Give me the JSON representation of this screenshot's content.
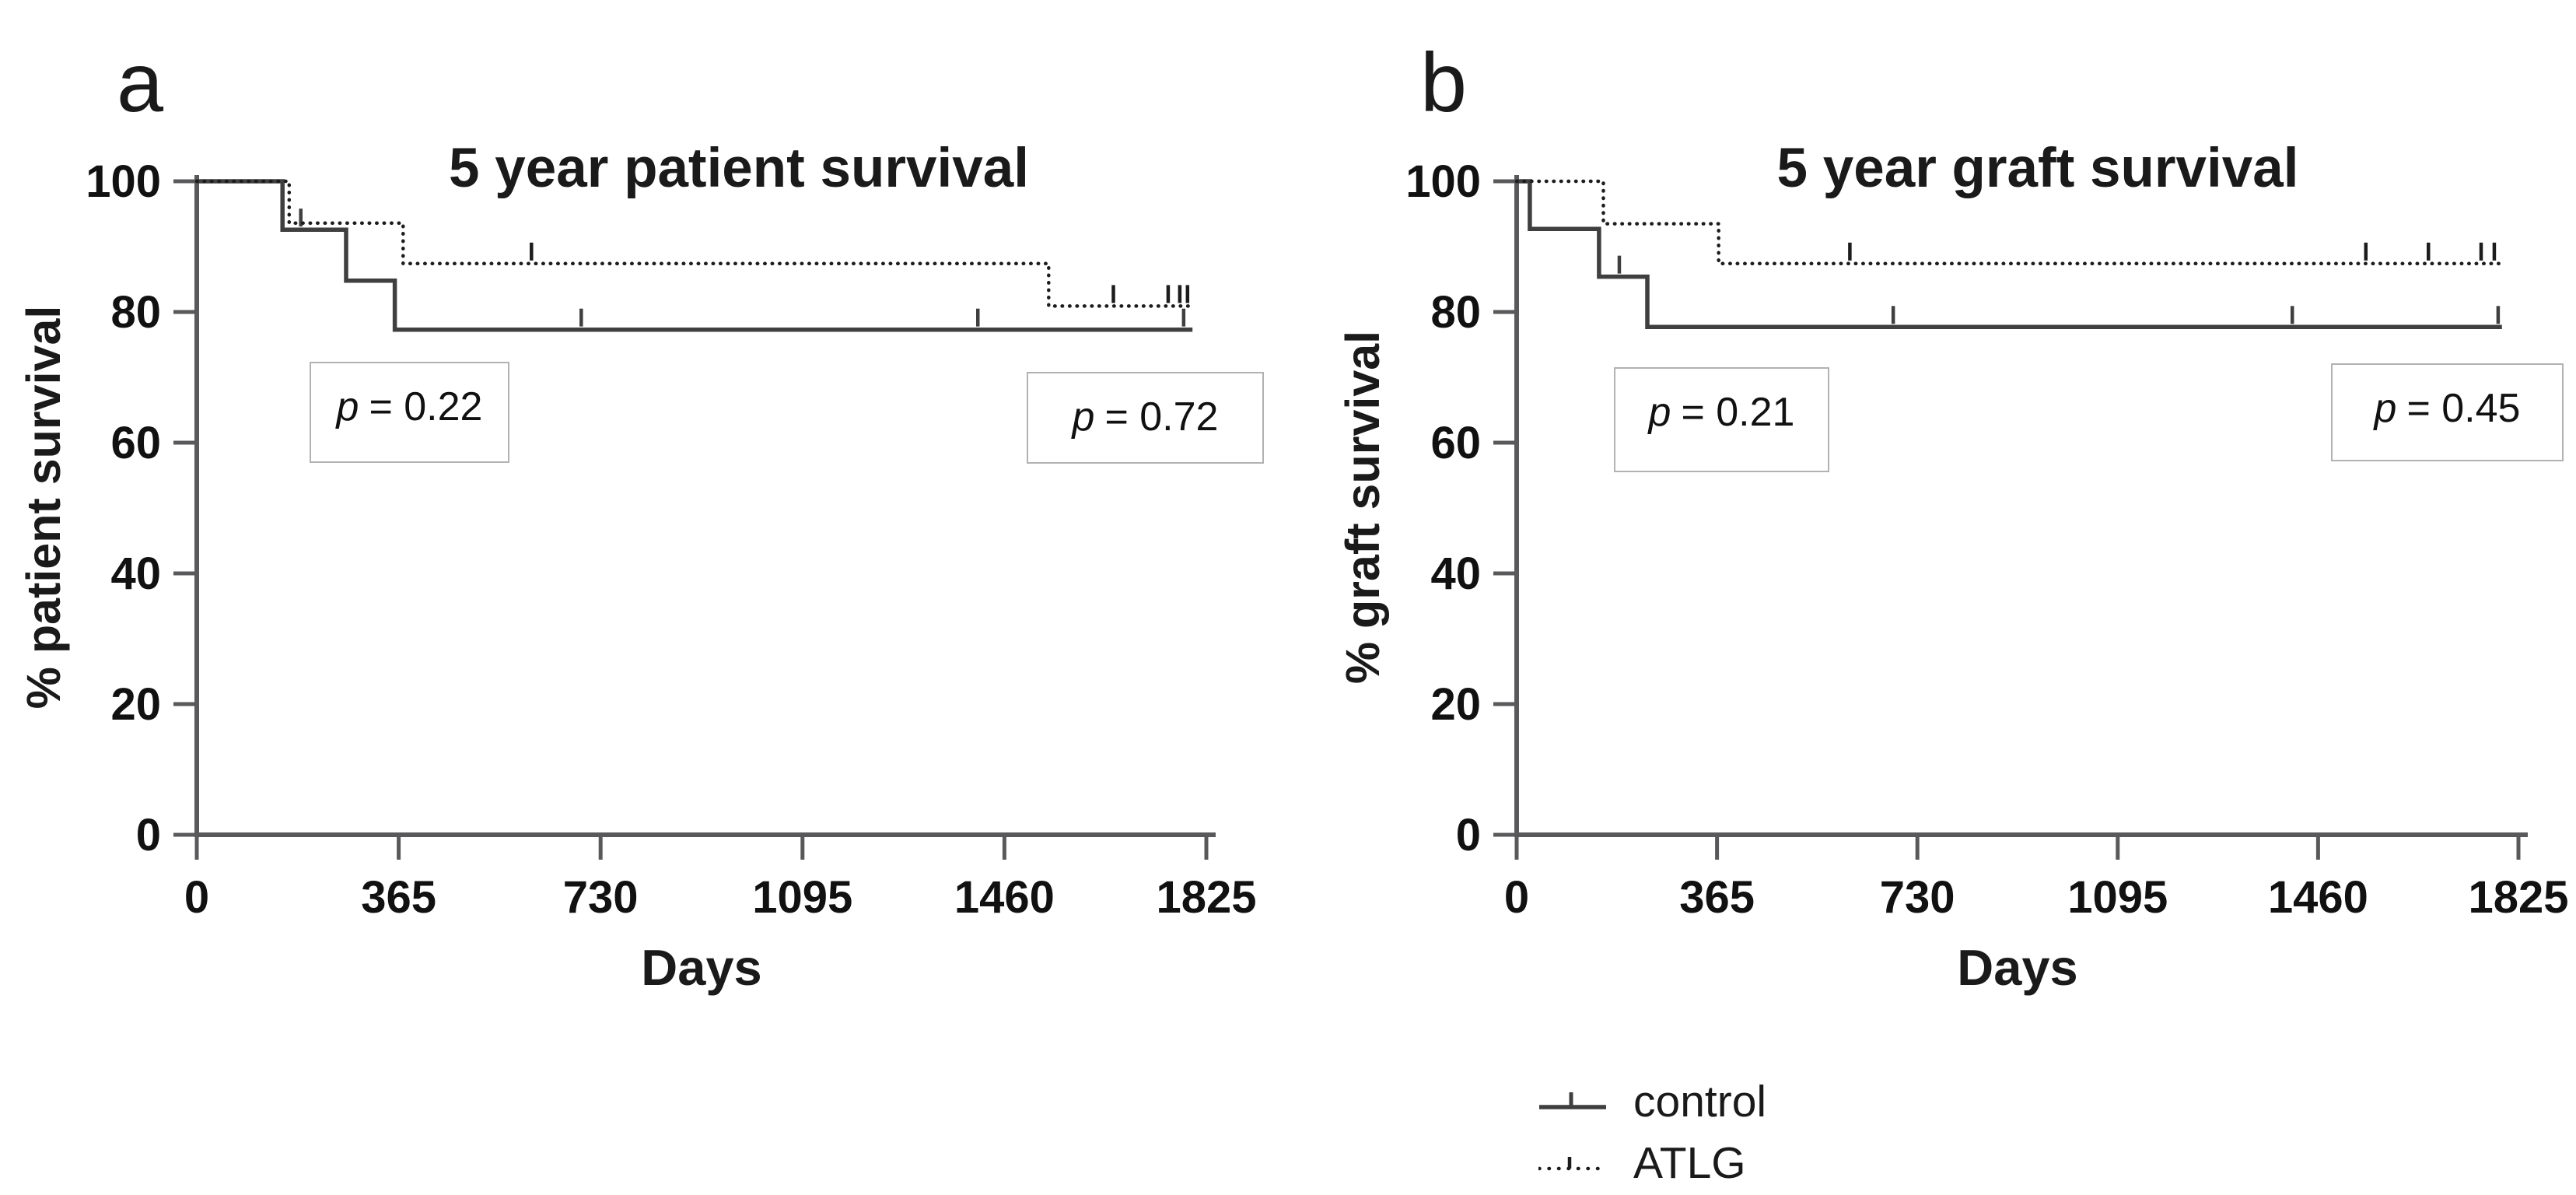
{
  "figure": {
    "background": "#ffffff",
    "axis_color": "#59595b",
    "solid_line_color": "#3f3f3f",
    "dotted_line_color": "#1c1c1c",
    "p_box_border_color": "#b2b2b2",
    "panels": [
      {
        "letter": "a"
      },
      {
        "letter": "b"
      }
    ],
    "legend": [
      {
        "label": "control",
        "style": "solid",
        "swatch_icon": "solid-line-with-censor-tick"
      },
      {
        "label": "ATLG",
        "style": "dotted",
        "swatch_icon": "dotted-line-with-censor-tick"
      }
    ]
  },
  "chart_data": [
    {
      "type": "line",
      "subtype": "kaplan-meier-step",
      "title": "5 year patient survival",
      "xlabel": "Days",
      "ylabel": "% patient survival",
      "xlim": [
        0,
        1825
      ],
      "ylim": [
        0,
        100
      ],
      "xticks": [
        0,
        365,
        730,
        1095,
        1460,
        1825
      ],
      "yticks": [
        0,
        20,
        40,
        60,
        80,
        100
      ],
      "grid": false,
      "legend_position": "below-figure-shared",
      "series": [
        {
          "name": "control",
          "style": "solid",
          "points": [
            [
              0,
              100
            ],
            [
              155,
              100
            ],
            [
              155,
              92.6
            ],
            [
              270,
              92.6
            ],
            [
              270,
              84.8
            ],
            [
              358,
              84.8
            ],
            [
              358,
              77.3
            ],
            [
              1800,
              77.3
            ]
          ],
          "censor_marks": [
            [
              188,
              92.6
            ],
            [
              695,
              77.3
            ],
            [
              1412,
              77.3
            ],
            [
              1784,
              77.3
            ]
          ]
        },
        {
          "name": "ATLG",
          "style": "dotted",
          "points": [
            [
              0,
              100
            ],
            [
              167,
              100
            ],
            [
              167,
              93.6
            ],
            [
              373,
              93.6
            ],
            [
              373,
              87.4
            ],
            [
              1540,
              87.4
            ],
            [
              1540,
              80.9
            ],
            [
              1795,
              80.9
            ]
          ],
          "censor_marks": [
            [
              605,
              87.4
            ],
            [
              1657,
              80.9
            ],
            [
              1756,
              80.9
            ],
            [
              1777,
              80.9
            ],
            [
              1791,
              80.9
            ]
          ]
        }
      ],
      "annotations": [
        {
          "text": "p = 0.22",
          "p_italic": "p",
          "rest": "= 0.22",
          "x_days": [
            204,
            565
          ],
          "y_pct": [
            56.9,
            72.4
          ]
        },
        {
          "text": "p = 0.72",
          "p_italic": "p",
          "rest": "= 0.72",
          "x_days": [
            1500,
            1929
          ],
          "y_pct": [
            56.7,
            70.8
          ]
        }
      ]
    },
    {
      "type": "line",
      "subtype": "kaplan-meier-step",
      "title": "5 year graft survival",
      "xlabel": "Days",
      "ylabel": "% graft survival",
      "xlim": [
        0,
        1825
      ],
      "ylim": [
        0,
        100
      ],
      "xticks": [
        0,
        365,
        730,
        1095,
        1460,
        1825
      ],
      "yticks": [
        0,
        20,
        40,
        60,
        80,
        100
      ],
      "grid": false,
      "legend_position": "below-figure-shared",
      "series": [
        {
          "name": "control",
          "style": "solid",
          "points": [
            [
              0,
              100
            ],
            [
              24,
              100
            ],
            [
              24,
              92.7
            ],
            [
              150,
              92.7
            ],
            [
              150,
              85.4
            ],
            [
              238,
              85.4
            ],
            [
              238,
              77.7
            ],
            [
              1795,
              77.7
            ]
          ],
          "censor_marks": [
            [
              187,
              85.4
            ],
            [
              686,
              77.7
            ],
            [
              1413,
              77.7
            ],
            [
              1788,
              77.7
            ]
          ]
        },
        {
          "name": "ATLG",
          "style": "dotted",
          "points": [
            [
              0,
              100
            ],
            [
              158,
              100
            ],
            [
              158,
              93.5
            ],
            [
              368,
              93.5
            ],
            [
              368,
              87.4
            ],
            [
              1792,
              87.4
            ]
          ],
          "censor_marks": [
            [
              607,
              87.4
            ],
            [
              1547,
              87.4
            ],
            [
              1661,
              87.4
            ],
            [
              1757,
              87.4
            ],
            [
              1781,
              87.4
            ]
          ]
        }
      ],
      "annotations": [
        {
          "text": "p = 0.21",
          "p_italic": "p",
          "rest": "= 0.21",
          "x_days": [
            177,
            570
          ],
          "y_pct": [
            55.4,
            71.5
          ]
        },
        {
          "text": "p = 0.45",
          "p_italic": "p",
          "rest": "= 0.45",
          "x_days": [
            1483,
            1906
          ],
          "y_pct": [
            57.1,
            72.1
          ]
        }
      ]
    }
  ]
}
